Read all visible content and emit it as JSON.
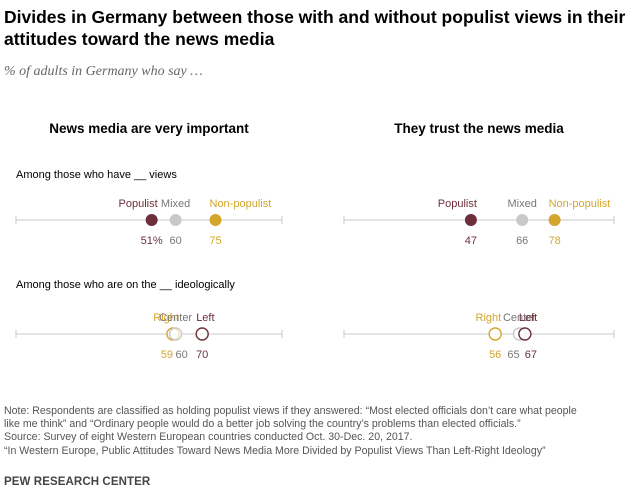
{
  "title": "Divides in Germany between those with and without populist views in their attitudes toward the news media",
  "subtitle": "% of adults in Germany who say …",
  "colors": {
    "populist": "#6e2f3a",
    "mixed": "#c9c9c9",
    "non_populist": "#d4a52b",
    "axis": "#c8c8c8",
    "value_gray": "#777777"
  },
  "chart_data": {
    "type": "scatter",
    "panels": [
      {
        "title": "News media are very important"
      },
      {
        "title": "They trust the news media"
      }
    ],
    "rows": [
      {
        "label": "Among those who have __ views",
        "series": [
          {
            "name": "Populist",
            "color_key": "populist",
            "filled": true,
            "values": [
              51,
              47
            ],
            "value_labels": [
              "51%",
              "47"
            ]
          },
          {
            "name": "Mixed",
            "color_key": "mixed",
            "filled": true,
            "values": [
              60,
              66
            ],
            "value_labels": [
              "60",
              "66"
            ]
          },
          {
            "name": "Non-populist",
            "color_key": "non_populist",
            "filled": true,
            "values": [
              75,
              78
            ],
            "value_labels": [
              "75",
              "78"
            ]
          }
        ]
      },
      {
        "label": "Among those who are on the __ ideologically",
        "series": [
          {
            "name": "Right",
            "color_key": "non_populist",
            "filled": false,
            "values": [
              59,
              56
            ],
            "value_labels": [
              "59",
              "56"
            ]
          },
          {
            "name": "Center",
            "color_key": "mixed",
            "filled": false,
            "values": [
              60,
              65
            ],
            "value_labels": [
              "60",
              "65"
            ]
          },
          {
            "name": "Left",
            "color_key": "populist",
            "filled": false,
            "values": [
              70,
              67
            ],
            "value_labels": [
              "70",
              "67"
            ]
          }
        ]
      }
    ],
    "xlim": [
      0,
      100
    ]
  },
  "notes": [
    "Note: Respondents are classified as holding populist views if they answered: “Most elected officials don’t care what people",
    "like me think” and “Ordinary people would do a better job solving the country’s problems than elected officials.”",
    "Source: Survey of eight Western European countries conducted Oct. 30-Dec. 20, 2017.",
    "“In Western Europe, Public Attitudes Toward News Media More Divided by Populist Views Than Left-Right Ideology”"
  ],
  "brand": "PEW RESEARCH CENTER"
}
